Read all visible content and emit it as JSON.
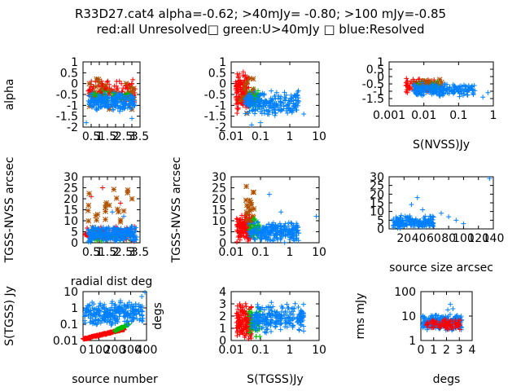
{
  "figure": {
    "title_line1": "R33D27.cat4 alpha=-0.62; >40mJy= -0.80; >100 mJy=-0.85",
    "title_line2": "red:all Unresolved□ green:U>40mJy □ blue:Resolved"
  },
  "colors": {
    "red": "#ff0000",
    "green": "#00c000",
    "blue": "#0080ff",
    "brown": "#b05000"
  },
  "chart_data": [
    {
      "type": "scatter",
      "id": "p11",
      "xscale": "linear",
      "xlim": [
        0,
        3.5
      ],
      "yscale": "linear",
      "ylim": [
        -2,
        1
      ],
      "xticks": [
        0.5,
        1,
        1.5,
        2,
        2.5,
        3,
        3.5
      ],
      "xticklabels": [
        "0.5",
        "1",
        "1.5",
        "2",
        "2.5",
        "3",
        "3.5"
      ],
      "yticks": [
        -2,
        -1.5,
        -1,
        -0.5,
        0,
        0.5,
        1
      ],
      "yticklabels": [
        "-2",
        "-1.5",
        "-1",
        "-0.5",
        "0",
        "0.5",
        "1"
      ],
      "xlabel": "",
      "ylabel": "alpha",
      "series": [
        {
          "color": "red",
          "cluster": {
            "x": [
              0.3,
              3.2
            ],
            "y": [
              -0.9,
              0.2
            ],
            "n": 150
          }
        },
        {
          "color": "brown",
          "cluster": {
            "x": [
              0.3,
              3.2
            ],
            "y": [
              -1.4,
              0.3
            ],
            "n": 30
          }
        },
        {
          "color": "green",
          "cluster": {
            "x": [
              0.5,
              3.0
            ],
            "y": [
              -0.9,
              -0.3
            ],
            "n": 50
          }
        },
        {
          "color": "blue",
          "cluster": {
            "x": [
              0.3,
              3.2
            ],
            "y": [
              -1.3,
              -0.4
            ],
            "n": 200
          },
          "points": [
            [
              0.2,
              -1.8
            ],
            [
              3.0,
              -1.6
            ]
          ]
        }
      ]
    },
    {
      "type": "scatter",
      "id": "p12",
      "xscale": "log",
      "xlim": [
        0.01,
        10
      ],
      "yscale": "linear",
      "ylim": [
        -2,
        1
      ],
      "xticks": [
        0.01,
        0.1,
        1,
        10
      ],
      "xticklabels": [
        "0.01",
        "0.1",
        "1",
        "10"
      ],
      "yticks": [
        -2,
        -1.5,
        -1,
        -0.5,
        0,
        0.5,
        1
      ],
      "yticklabels": [
        "-2",
        "-1.5",
        "-1",
        "-0.5",
        "0",
        "0.5",
        "1"
      ],
      "xlabel": "",
      "ylabel": "",
      "series": [
        {
          "color": "red",
          "cluster": {
            "x": [
              0.014,
              0.04
            ],
            "y": [
              -1.4,
              0.6
            ],
            "n": 140
          }
        },
        {
          "color": "green",
          "cluster": {
            "x": [
              0.04,
              0.1
            ],
            "y": [
              -1.2,
              -0.2
            ],
            "n": 50
          }
        },
        {
          "color": "brown",
          "cluster": {
            "x": [
              0.02,
              0.06
            ],
            "y": [
              -1.6,
              0.6
            ],
            "n": 15
          }
        },
        {
          "color": "blue",
          "cluster": {
            "x": [
              0.03,
              2.0
            ],
            "y": [
              -1.5,
              -0.3
            ],
            "n": 220
          },
          "points": [
            [
              3.0,
              -1.4
            ],
            [
              0.05,
              -1.9
            ],
            [
              0.1,
              -1.8
            ]
          ]
        }
      ]
    },
    {
      "type": "scatter",
      "id": "p13",
      "xscale": "log",
      "xlim": [
        0.001,
        1
      ],
      "yscale": "linear",
      "ylim": [
        -2,
        1
      ],
      "xticks": [
        0.001,
        0.01,
        0.1,
        1
      ],
      "xticklabels": [
        "0.001",
        "0.01",
        "0.1",
        "1"
      ],
      "yticks": [
        -1.5,
        -1,
        -0.5,
        0,
        0.5,
        1
      ],
      "yticklabels": [
        "-1.5",
        "-1",
        "-0.5",
        "0",
        "0.5",
        "1"
      ],
      "xlabel": "S(NVSS)Jy",
      "ylabel": "",
      "series": [
        {
          "color": "red",
          "cluster": {
            "x": [
              0.003,
              0.02
            ],
            "y": [
              -1.2,
              -0.1
            ],
            "n": 100
          }
        },
        {
          "color": "green",
          "cluster": {
            "x": [
              0.006,
              0.03
            ],
            "y": [
              -1.0,
              -0.2
            ],
            "n": 50
          }
        },
        {
          "color": "brown",
          "cluster": {
            "x": [
              0.004,
              0.04
            ],
            "y": [
              -0.9,
              -0.1
            ],
            "n": 15
          }
        },
        {
          "color": "blue",
          "cluster": {
            "x": [
              0.005,
              0.3
            ],
            "y": [
              -1.4,
              -0.4
            ],
            "n": 200
          },
          "points": [
            [
              0.5,
              -1.4
            ],
            [
              0.7,
              -1.1
            ]
          ]
        }
      ]
    },
    {
      "type": "scatter",
      "id": "p21",
      "xscale": "linear",
      "xlim": [
        0,
        3.5
      ],
      "yscale": "linear",
      "ylim": [
        0,
        30
      ],
      "xticks": [
        0.5,
        1,
        1.5,
        2,
        2.5,
        3,
        3.5
      ],
      "xticklabels": [
        "0.5",
        "1",
        "1.5",
        "2",
        "2.5",
        "3",
        "3.5"
      ],
      "yticks": [
        0,
        5,
        10,
        15,
        20,
        25,
        30
      ],
      "yticklabels": [
        "0",
        "5",
        "10",
        "15",
        "20",
        "25",
        "30"
      ],
      "xlabel": "radial dist deg",
      "ylabel": "TGSS-NVSS arcsec",
      "series": [
        {
          "color": "red",
          "cluster": {
            "x": [
              0.1,
              3.2
            ],
            "y": [
              0,
              8
            ],
            "n": 120
          },
          "points": [
            [
              0.5,
              21
            ],
            [
              1.2,
              25
            ],
            [
              2.3,
              18
            ]
          ]
        },
        {
          "color": "brown",
          "cluster": {
            "x": [
              0.3,
              3.2
            ],
            "y": [
              2,
              28
            ],
            "n": 25
          }
        },
        {
          "color": "green",
          "cluster": {
            "x": [
              0.5,
              3.0
            ],
            "y": [
              0,
              6
            ],
            "n": 40
          }
        },
        {
          "color": "blue",
          "cluster": {
            "x": [
              0.3,
              3.3
            ],
            "y": [
              0,
              8
            ],
            "n": 250
          },
          "points": [
            [
              1.8,
              14
            ],
            [
              2.5,
              12
            ]
          ]
        }
      ]
    },
    {
      "type": "scatter",
      "id": "p22",
      "xscale": "log",
      "xlim": [
        0.01,
        10
      ],
      "yscale": "linear",
      "ylim": [
        0,
        30
      ],
      "xticks": [
        0.01,
        0.1,
        1,
        10
      ],
      "xticklabels": [
        "0.01",
        "0.1",
        "1",
        "10"
      ],
      "yticks": [
        0,
        5,
        10,
        15,
        20,
        25,
        30
      ],
      "yticklabels": [
        "0",
        "5",
        "10",
        "15",
        "20",
        "25",
        "30"
      ],
      "xlabel": "",
      "ylabel": "TGSS-NVSS arcsec",
      "series": [
        {
          "color": "red",
          "cluster": {
            "x": [
              0.015,
              0.05
            ],
            "y": [
              0,
              14
            ],
            "n": 140
          }
        },
        {
          "color": "brown",
          "cluster": {
            "x": [
              0.03,
              0.06
            ],
            "y": [
              6,
              27
            ],
            "n": 20
          }
        },
        {
          "color": "green",
          "cluster": {
            "x": [
              0.04,
              0.1
            ],
            "y": [
              0,
              12
            ],
            "n": 50
          }
        },
        {
          "color": "blue",
          "cluster": {
            "x": [
              0.04,
              2.0
            ],
            "y": [
              0,
              10
            ],
            "n": 230
          },
          "points": [
            [
              0.2,
              22
            ],
            [
              0.5,
              14
            ],
            [
              8.0,
              12
            ]
          ]
        }
      ]
    },
    {
      "type": "scatter",
      "id": "p23",
      "xscale": "linear",
      "xlim": [
        0,
        140
      ],
      "yscale": "linear",
      "ylim": [
        0,
        30
      ],
      "xticks": [
        20,
        40,
        60,
        80,
        100,
        120,
        140
      ],
      "xticklabels": [
        "20",
        "40",
        "60",
        "80",
        "100",
        "120",
        "140"
      ],
      "yticks": [
        0,
        5,
        10,
        15,
        20,
        25,
        30
      ],
      "yticklabels": [
        "0",
        "5",
        "10",
        "15",
        "20",
        "25",
        "30"
      ],
      "xlabel": "source size arcsec",
      "ylabel": "",
      "series": [
        {
          "color": "blue",
          "cluster": {
            "x": [
              5,
              60
            ],
            "y": [
              0,
              8
            ],
            "n": 180
          },
          "points": [
            [
              30,
              14
            ],
            [
              38,
              18
            ],
            [
              45,
              11
            ],
            [
              70,
              9
            ],
            [
              80,
              7
            ],
            [
              90,
              5
            ],
            [
              100,
              3
            ],
            [
              135,
              29
            ]
          ]
        }
      ]
    },
    {
      "type": "scatter",
      "id": "p31",
      "xscale": "linear",
      "xlim": [
        0,
        400
      ],
      "yscale": "log",
      "ylim": [
        0.01,
        10
      ],
      "xticks": [
        0,
        100,
        200,
        300,
        400
      ],
      "xticklabels": [
        "0",
        "100",
        "200",
        "300",
        "400"
      ],
      "yticks": [
        0.01,
        0.1,
        1,
        10
      ],
      "yticklabels": [
        "0.01",
        "0.1",
        "1",
        "10"
      ],
      "xlabel": "source number",
      "ylabel": "S(TGSS) Jy",
      "series": [
        {
          "color": "red",
          "curve": {
            "x": [
              0,
              260
            ],
            "y": [
              0.012,
              0.05
            ],
            "n": 130
          }
        },
        {
          "color": "green",
          "curve": {
            "x": [
              200,
              290
            ],
            "y": [
              0.04,
              0.1
            ],
            "n": 40
          }
        },
        {
          "color": "blue",
          "cluster": {
            "x": [
              10,
              380
            ],
            "y": [
              0.08,
              3.0
            ],
            "n": 260
          },
          "points": [
            [
              390,
              9.0
            ],
            [
              370,
              5.0
            ]
          ]
        }
      ]
    },
    {
      "type": "scatter",
      "id": "p32",
      "xscale": "log",
      "xlim": [
        0.01,
        10
      ],
      "yscale": "linear",
      "ylim": [
        0,
        4
      ],
      "xticks": [
        0.01,
        0.1,
        1,
        10
      ],
      "xticklabels": [
        "0.01",
        "0.1",
        "1",
        "10"
      ],
      "yticks": [
        0,
        1,
        2,
        3,
        4
      ],
      "yticklabels": [
        "0",
        "1",
        "2",
        "3",
        "4"
      ],
      "xlabel": "S(TGSS)Jy",
      "ylabel": "degs",
      "series": [
        {
          "color": "red",
          "cluster": {
            "x": [
              0.015,
              0.05
            ],
            "y": [
              0.1,
              3.2
            ],
            "n": 140
          }
        },
        {
          "color": "green",
          "cluster": {
            "x": [
              0.04,
              0.1
            ],
            "y": [
              0.2,
              3.0
            ],
            "n": 50
          }
        },
        {
          "color": "blue",
          "cluster": {
            "x": [
              0.05,
              3.0
            ],
            "y": [
              0.5,
              3.2
            ],
            "n": 230
          }
        }
      ]
    },
    {
      "type": "scatter",
      "id": "p33",
      "xscale": "linear",
      "xlim": [
        0,
        4
      ],
      "yscale": "log",
      "ylim": [
        1,
        100
      ],
      "xticks": [
        0,
        1,
        2,
        3,
        4
      ],
      "xticklabels": [
        "0",
        "1",
        "2",
        "3",
        "4"
      ],
      "yticks": [
        1,
        10,
        100
      ],
      "yticklabels": [
        "1",
        "10",
        "100"
      ],
      "xlabel": "degs",
      "ylabel": "rms mJy",
      "series": [
        {
          "color": "blue",
          "cluster": {
            "x": [
              0.1,
              3.2
            ],
            "y": [
              2.5,
              12
            ],
            "n": 260
          },
          "points": [
            [
              2.3,
              30
            ],
            [
              2.5,
              20
            ],
            [
              2.1,
              18
            ]
          ]
        },
        {
          "color": "red",
          "cluster": {
            "x": [
              0.2,
              3.2
            ],
            "y": [
              2.5,
              8
            ],
            "n": 80
          }
        }
      ]
    }
  ]
}
